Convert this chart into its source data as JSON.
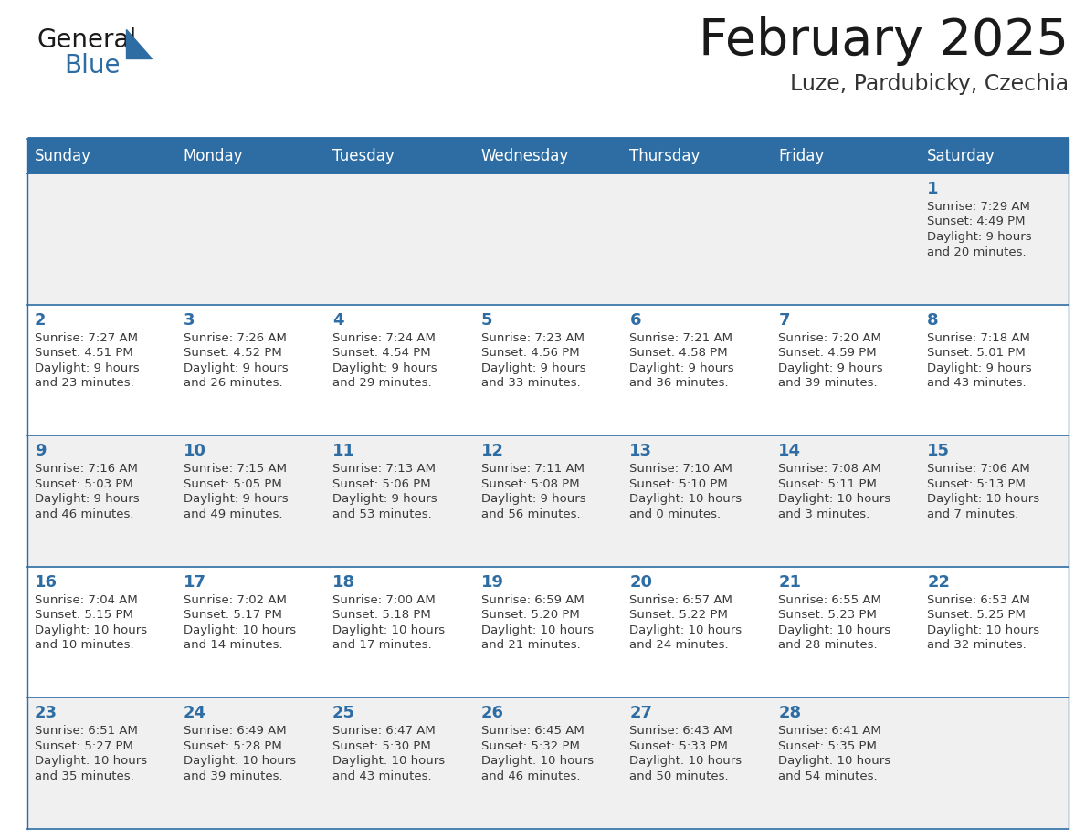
{
  "title": "February 2025",
  "subtitle": "Luze, Pardubicky, Czechia",
  "days_of_week": [
    "Sunday",
    "Monday",
    "Tuesday",
    "Wednesday",
    "Thursday",
    "Friday",
    "Saturday"
  ],
  "header_bg": "#2e6da4",
  "header_text": "#ffffff",
  "cell_bg_odd": "#f0f0f0",
  "cell_bg_even": "#ffffff",
  "grid_line_color": "#2e6da4",
  "day_number_color": "#2e6da4",
  "cell_text_color": "#3a3a3a",
  "title_color": "#1a1a1a",
  "subtitle_color": "#333333",
  "logo_general_color": "#1a1a1a",
  "logo_blue_color": "#2e6da4",
  "weeks": [
    [
      null,
      null,
      null,
      null,
      null,
      null,
      {
        "day": 1,
        "sunrise": "7:29 AM",
        "sunset": "4:49 PM",
        "daylight": "9 hours",
        "daylight2": "and 20 minutes."
      }
    ],
    [
      {
        "day": 2,
        "sunrise": "7:27 AM",
        "sunset": "4:51 PM",
        "daylight": "9 hours",
        "daylight2": "and 23 minutes."
      },
      {
        "day": 3,
        "sunrise": "7:26 AM",
        "sunset": "4:52 PM",
        "daylight": "9 hours",
        "daylight2": "and 26 minutes."
      },
      {
        "day": 4,
        "sunrise": "7:24 AM",
        "sunset": "4:54 PM",
        "daylight": "9 hours",
        "daylight2": "and 29 minutes."
      },
      {
        "day": 5,
        "sunrise": "7:23 AM",
        "sunset": "4:56 PM",
        "daylight": "9 hours",
        "daylight2": "and 33 minutes."
      },
      {
        "day": 6,
        "sunrise": "7:21 AM",
        "sunset": "4:58 PM",
        "daylight": "9 hours",
        "daylight2": "and 36 minutes."
      },
      {
        "day": 7,
        "sunrise": "7:20 AM",
        "sunset": "4:59 PM",
        "daylight": "9 hours",
        "daylight2": "and 39 minutes."
      },
      {
        "day": 8,
        "sunrise": "7:18 AM",
        "sunset": "5:01 PM",
        "daylight": "9 hours",
        "daylight2": "and 43 minutes."
      }
    ],
    [
      {
        "day": 9,
        "sunrise": "7:16 AM",
        "sunset": "5:03 PM",
        "daylight": "9 hours",
        "daylight2": "and 46 minutes."
      },
      {
        "day": 10,
        "sunrise": "7:15 AM",
        "sunset": "5:05 PM",
        "daylight": "9 hours",
        "daylight2": "and 49 minutes."
      },
      {
        "day": 11,
        "sunrise": "7:13 AM",
        "sunset": "5:06 PM",
        "daylight": "9 hours",
        "daylight2": "and 53 minutes."
      },
      {
        "day": 12,
        "sunrise": "7:11 AM",
        "sunset": "5:08 PM",
        "daylight": "9 hours",
        "daylight2": "and 56 minutes."
      },
      {
        "day": 13,
        "sunrise": "7:10 AM",
        "sunset": "5:10 PM",
        "daylight": "10 hours",
        "daylight2": "and 0 minutes."
      },
      {
        "day": 14,
        "sunrise": "7:08 AM",
        "sunset": "5:11 PM",
        "daylight": "10 hours",
        "daylight2": "and 3 minutes."
      },
      {
        "day": 15,
        "sunrise": "7:06 AM",
        "sunset": "5:13 PM",
        "daylight": "10 hours",
        "daylight2": "and 7 minutes."
      }
    ],
    [
      {
        "day": 16,
        "sunrise": "7:04 AM",
        "sunset": "5:15 PM",
        "daylight": "10 hours",
        "daylight2": "and 10 minutes."
      },
      {
        "day": 17,
        "sunrise": "7:02 AM",
        "sunset": "5:17 PM",
        "daylight": "10 hours",
        "daylight2": "and 14 minutes."
      },
      {
        "day": 18,
        "sunrise": "7:00 AM",
        "sunset": "5:18 PM",
        "daylight": "10 hours",
        "daylight2": "and 17 minutes."
      },
      {
        "day": 19,
        "sunrise": "6:59 AM",
        "sunset": "5:20 PM",
        "daylight": "10 hours",
        "daylight2": "and 21 minutes."
      },
      {
        "day": 20,
        "sunrise": "6:57 AM",
        "sunset": "5:22 PM",
        "daylight": "10 hours",
        "daylight2": "and 24 minutes."
      },
      {
        "day": 21,
        "sunrise": "6:55 AM",
        "sunset": "5:23 PM",
        "daylight": "10 hours",
        "daylight2": "and 28 minutes."
      },
      {
        "day": 22,
        "sunrise": "6:53 AM",
        "sunset": "5:25 PM",
        "daylight": "10 hours",
        "daylight2": "and 32 minutes."
      }
    ],
    [
      {
        "day": 23,
        "sunrise": "6:51 AM",
        "sunset": "5:27 PM",
        "daylight": "10 hours",
        "daylight2": "and 35 minutes."
      },
      {
        "day": 24,
        "sunrise": "6:49 AM",
        "sunset": "5:28 PM",
        "daylight": "10 hours",
        "daylight2": "and 39 minutes."
      },
      {
        "day": 25,
        "sunrise": "6:47 AM",
        "sunset": "5:30 PM",
        "daylight": "10 hours",
        "daylight2": "and 43 minutes."
      },
      {
        "day": 26,
        "sunrise": "6:45 AM",
        "sunset": "5:32 PM",
        "daylight": "10 hours",
        "daylight2": "and 46 minutes."
      },
      {
        "day": 27,
        "sunrise": "6:43 AM",
        "sunset": "5:33 PM",
        "daylight": "10 hours",
        "daylight2": "and 50 minutes."
      },
      {
        "day": 28,
        "sunrise": "6:41 AM",
        "sunset": "5:35 PM",
        "daylight": "10 hours",
        "daylight2": "and 54 minutes."
      },
      null
    ]
  ]
}
